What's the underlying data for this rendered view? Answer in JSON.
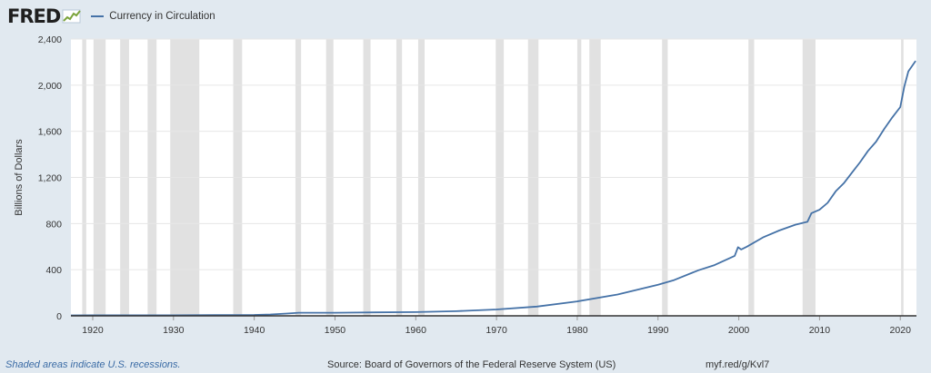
{
  "header": {
    "logo_text": "FRED",
    "logo_icon": "trend-chart-icon",
    "legend_label": "Currency in Circulation"
  },
  "colors": {
    "series": "#4572a7",
    "recession": "#e1e1e1",
    "background": "#e1e9f0",
    "plot": "#ffffff",
    "note": "#3a6ba5"
  },
  "footer": {
    "recession_note": "Shaded areas indicate U.S. recessions.",
    "source": "Source: Board of Governors of the Federal Reserve System (US)",
    "shortlink": "myf.red/g/Kvl7"
  },
  "chart_data": {
    "type": "line",
    "title": "",
    "xlabel": "",
    "ylabel": "Billions of Dollars",
    "xlim": [
      1917.3,
      2022
    ],
    "ylim": [
      0,
      2400
    ],
    "yticks": [
      0,
      400,
      800,
      1200,
      1600,
      2000,
      2400
    ],
    "ytick_labels": [
      "0",
      "400",
      "800",
      "1,200",
      "1,600",
      "2,000",
      "2,400"
    ],
    "xticks": [
      1920,
      1930,
      1940,
      1950,
      1960,
      1970,
      1980,
      1990,
      2000,
      2010,
      2020
    ],
    "xtick_labels": [
      "1920",
      "1930",
      "1940",
      "1950",
      "1960",
      "1970",
      "1980",
      "1990",
      "2000",
      "2010",
      "2020"
    ],
    "legend_position": "top-left",
    "recessions": [
      [
        1918.7,
        1919.2
      ],
      [
        1920.1,
        1921.6
      ],
      [
        1923.4,
        1924.5
      ],
      [
        1926.8,
        1927.9
      ],
      [
        1929.6,
        1933.2
      ],
      [
        1937.4,
        1938.5
      ],
      [
        1945.1,
        1945.8
      ],
      [
        1948.9,
        1949.8
      ],
      [
        1953.5,
        1954.4
      ],
      [
        1957.6,
        1958.3
      ],
      [
        1960.3,
        1961.1
      ],
      [
        1969.9,
        1970.9
      ],
      [
        1973.9,
        1975.2
      ],
      [
        1980.0,
        1980.5
      ],
      [
        1981.5,
        1982.9
      ],
      [
        1990.5,
        1991.2
      ],
      [
        2001.2,
        2001.9
      ],
      [
        2007.9,
        2009.5
      ],
      [
        2020.1,
        2020.4
      ]
    ],
    "series": [
      {
        "name": "Currency in Circulation",
        "x": [
          1917.3,
          1920,
          1925,
          1930,
          1935,
          1940,
          1942,
          1944,
          1945.5,
          1950,
          1955,
          1960,
          1965,
          1970,
          1975,
          1980,
          1985,
          1990,
          1992,
          1995,
          1997,
          1999.5,
          1999.9,
          2000.3,
          2001,
          2003,
          2005,
          2007,
          2008.5,
          2009,
          2010,
          2011,
          2012,
          2013,
          2014,
          2015,
          2016,
          2017,
          2018,
          2019,
          2020,
          2020.5,
          2021,
          2021.9
        ],
        "y": [
          4,
          5,
          5,
          5,
          6,
          8,
          12,
          20,
          27,
          27,
          30,
          32,
          40,
          55,
          80,
          125,
          185,
          270,
          310,
          395,
          440,
          520,
          595,
          575,
          600,
          680,
          740,
          790,
          815,
          890,
          920,
          980,
          1080,
          1150,
          1240,
          1330,
          1430,
          1510,
          1620,
          1720,
          1810,
          1990,
          2120,
          2210
        ]
      }
    ]
  }
}
